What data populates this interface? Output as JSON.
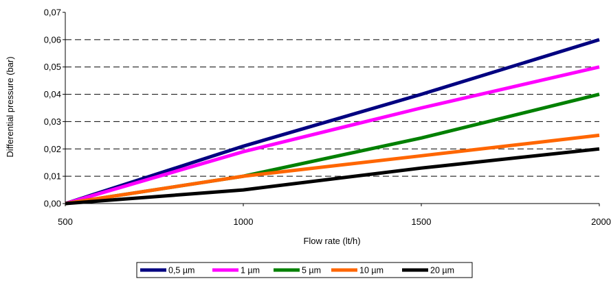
{
  "chart_data": {
    "type": "line",
    "title": "",
    "xlabel": "Flow rate (lt/h)",
    "ylabel": "Differential pressure (bar)",
    "xlim": [
      500,
      2000
    ],
    "ylim": [
      0,
      0.07
    ],
    "x_ticks": [
      "500",
      "1000",
      "1500",
      "2000"
    ],
    "y_ticks": [
      "0,00",
      "0,01",
      "0,02",
      "0,03",
      "0,04",
      "0,05",
      "0,06",
      "0,07"
    ],
    "grid": "horizontal dashed",
    "legend_position": "bottom",
    "x": [
      500,
      1000,
      1500,
      2000
    ],
    "series": [
      {
        "name": "0,5 µm",
        "color": "#000080",
        "values": [
          0,
          0.021,
          0.04,
          0.06
        ]
      },
      {
        "name": "1 µm",
        "color": "#ff00ff",
        "values": [
          0,
          0.019,
          0.035,
          0.05
        ]
      },
      {
        "name": "5 µm",
        "color": "#008000",
        "values": [
          0,
          0.01,
          0.024,
          0.04
        ]
      },
      {
        "name": "10 µm",
        "color": "#ff6600",
        "values": [
          0,
          0.01,
          0.0175,
          0.025
        ]
      },
      {
        "name": "20 µm",
        "color": "#000000",
        "values": [
          0,
          0.005,
          0.013,
          0.02
        ]
      }
    ]
  }
}
